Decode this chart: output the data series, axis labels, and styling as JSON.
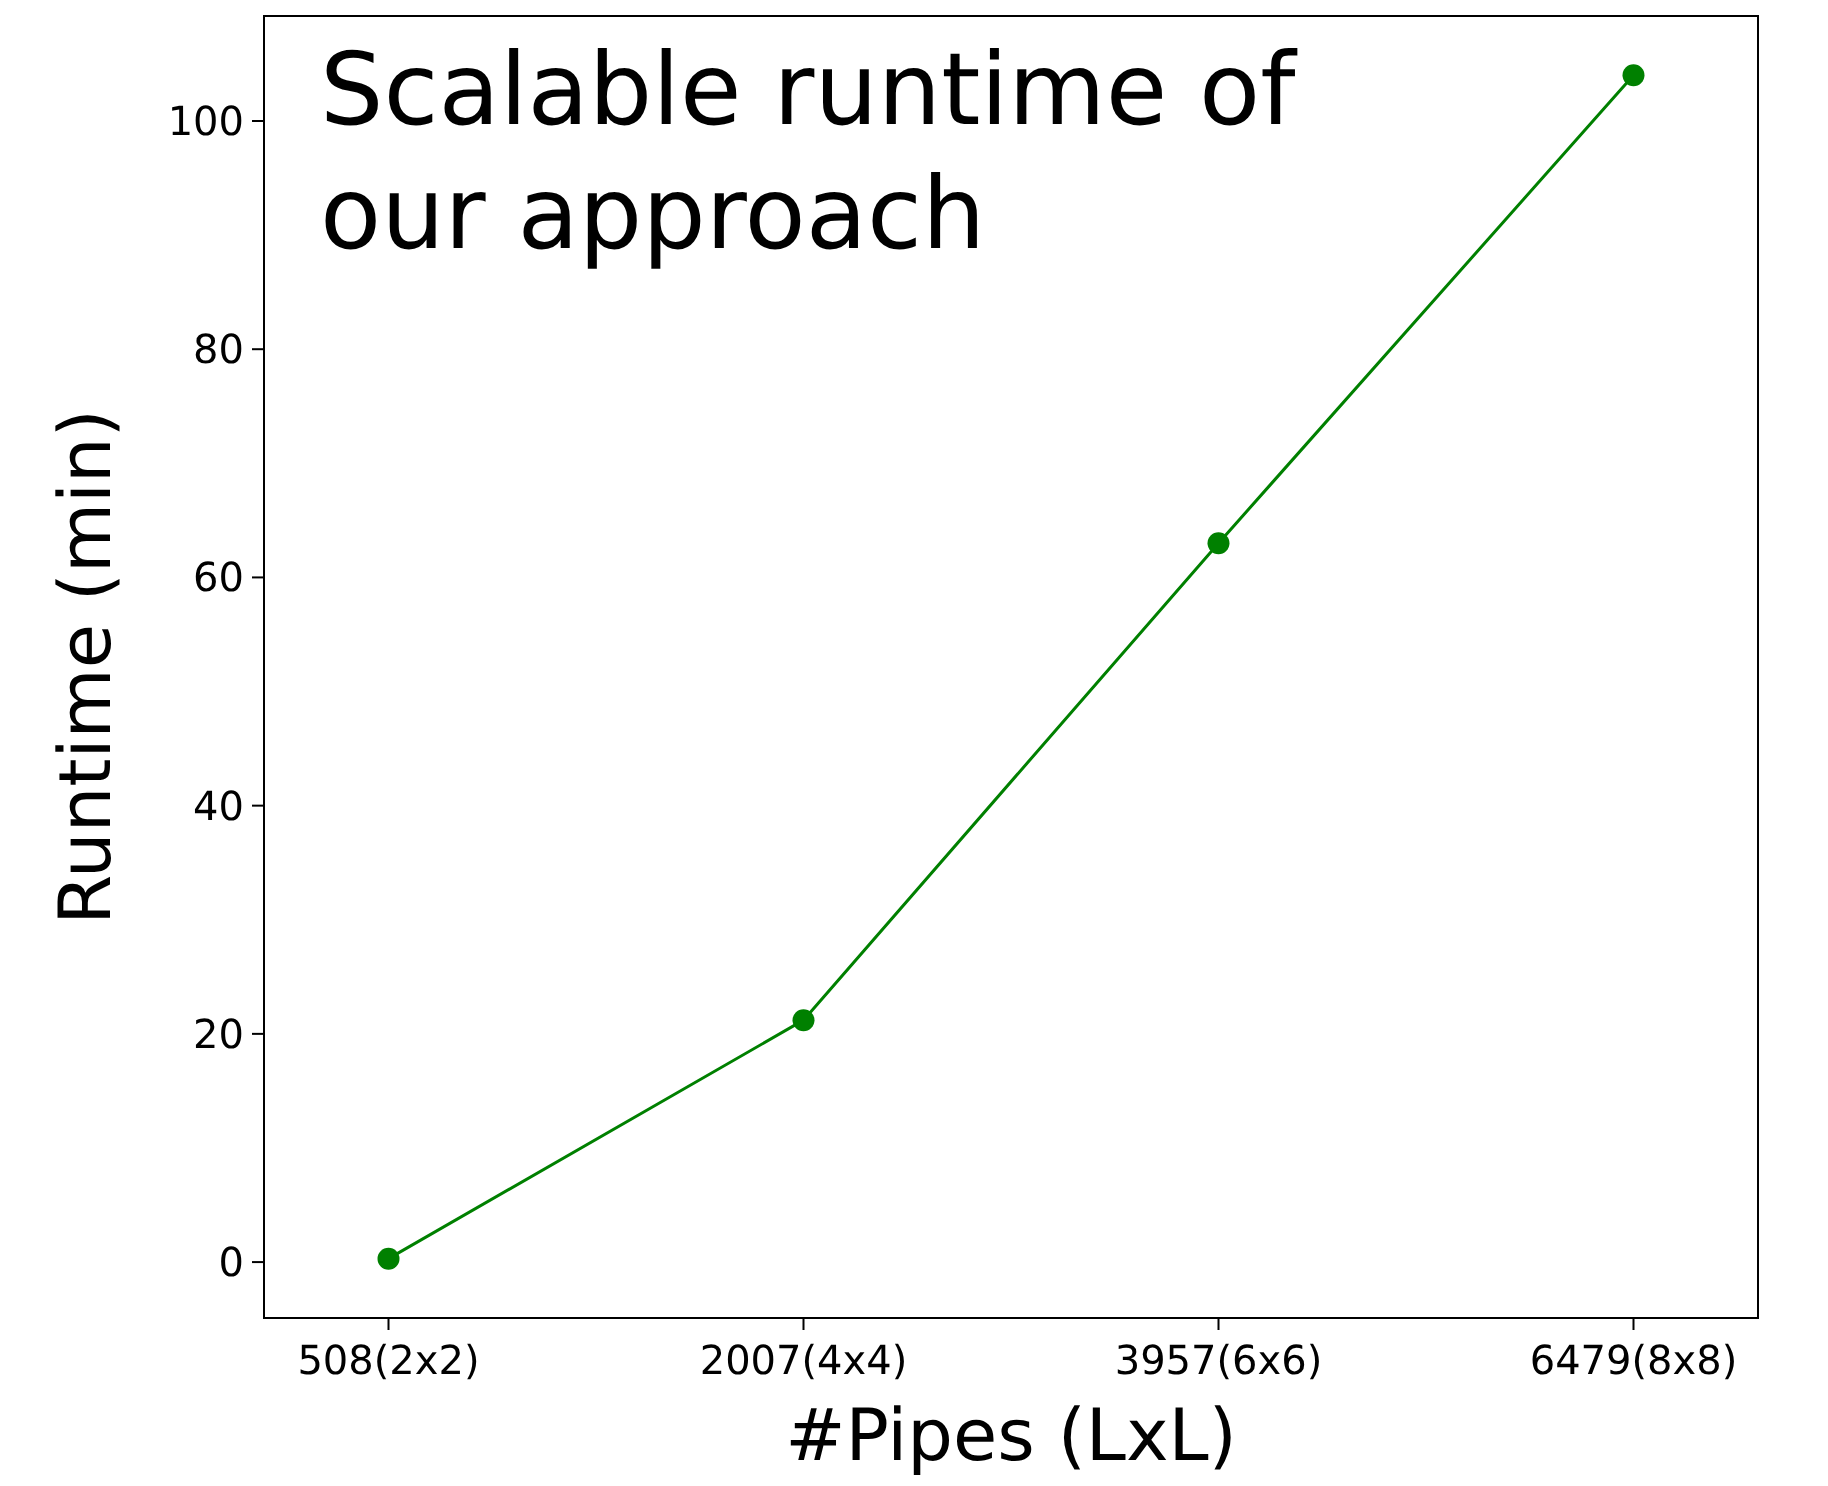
{
  "chart_data": {
    "type": "line",
    "title": "Scalable runtime of our approach",
    "xlabel": "#Pipes (LxL)",
    "ylabel": "Runtime (min)",
    "categories": [
      "508(2x2)",
      "2007(4x4)",
      "3957(6x6)",
      "6479(8x8)"
    ],
    "series": [
      {
        "color": "#008000",
        "values": [
          0.3,
          21.2,
          63,
          104
        ]
      }
    ],
    "ylim": [
      -4.9,
      109.2
    ],
    "yticks": [
      0,
      20,
      40,
      60,
      80,
      100
    ],
    "marker": "circle",
    "grid": false
  }
}
